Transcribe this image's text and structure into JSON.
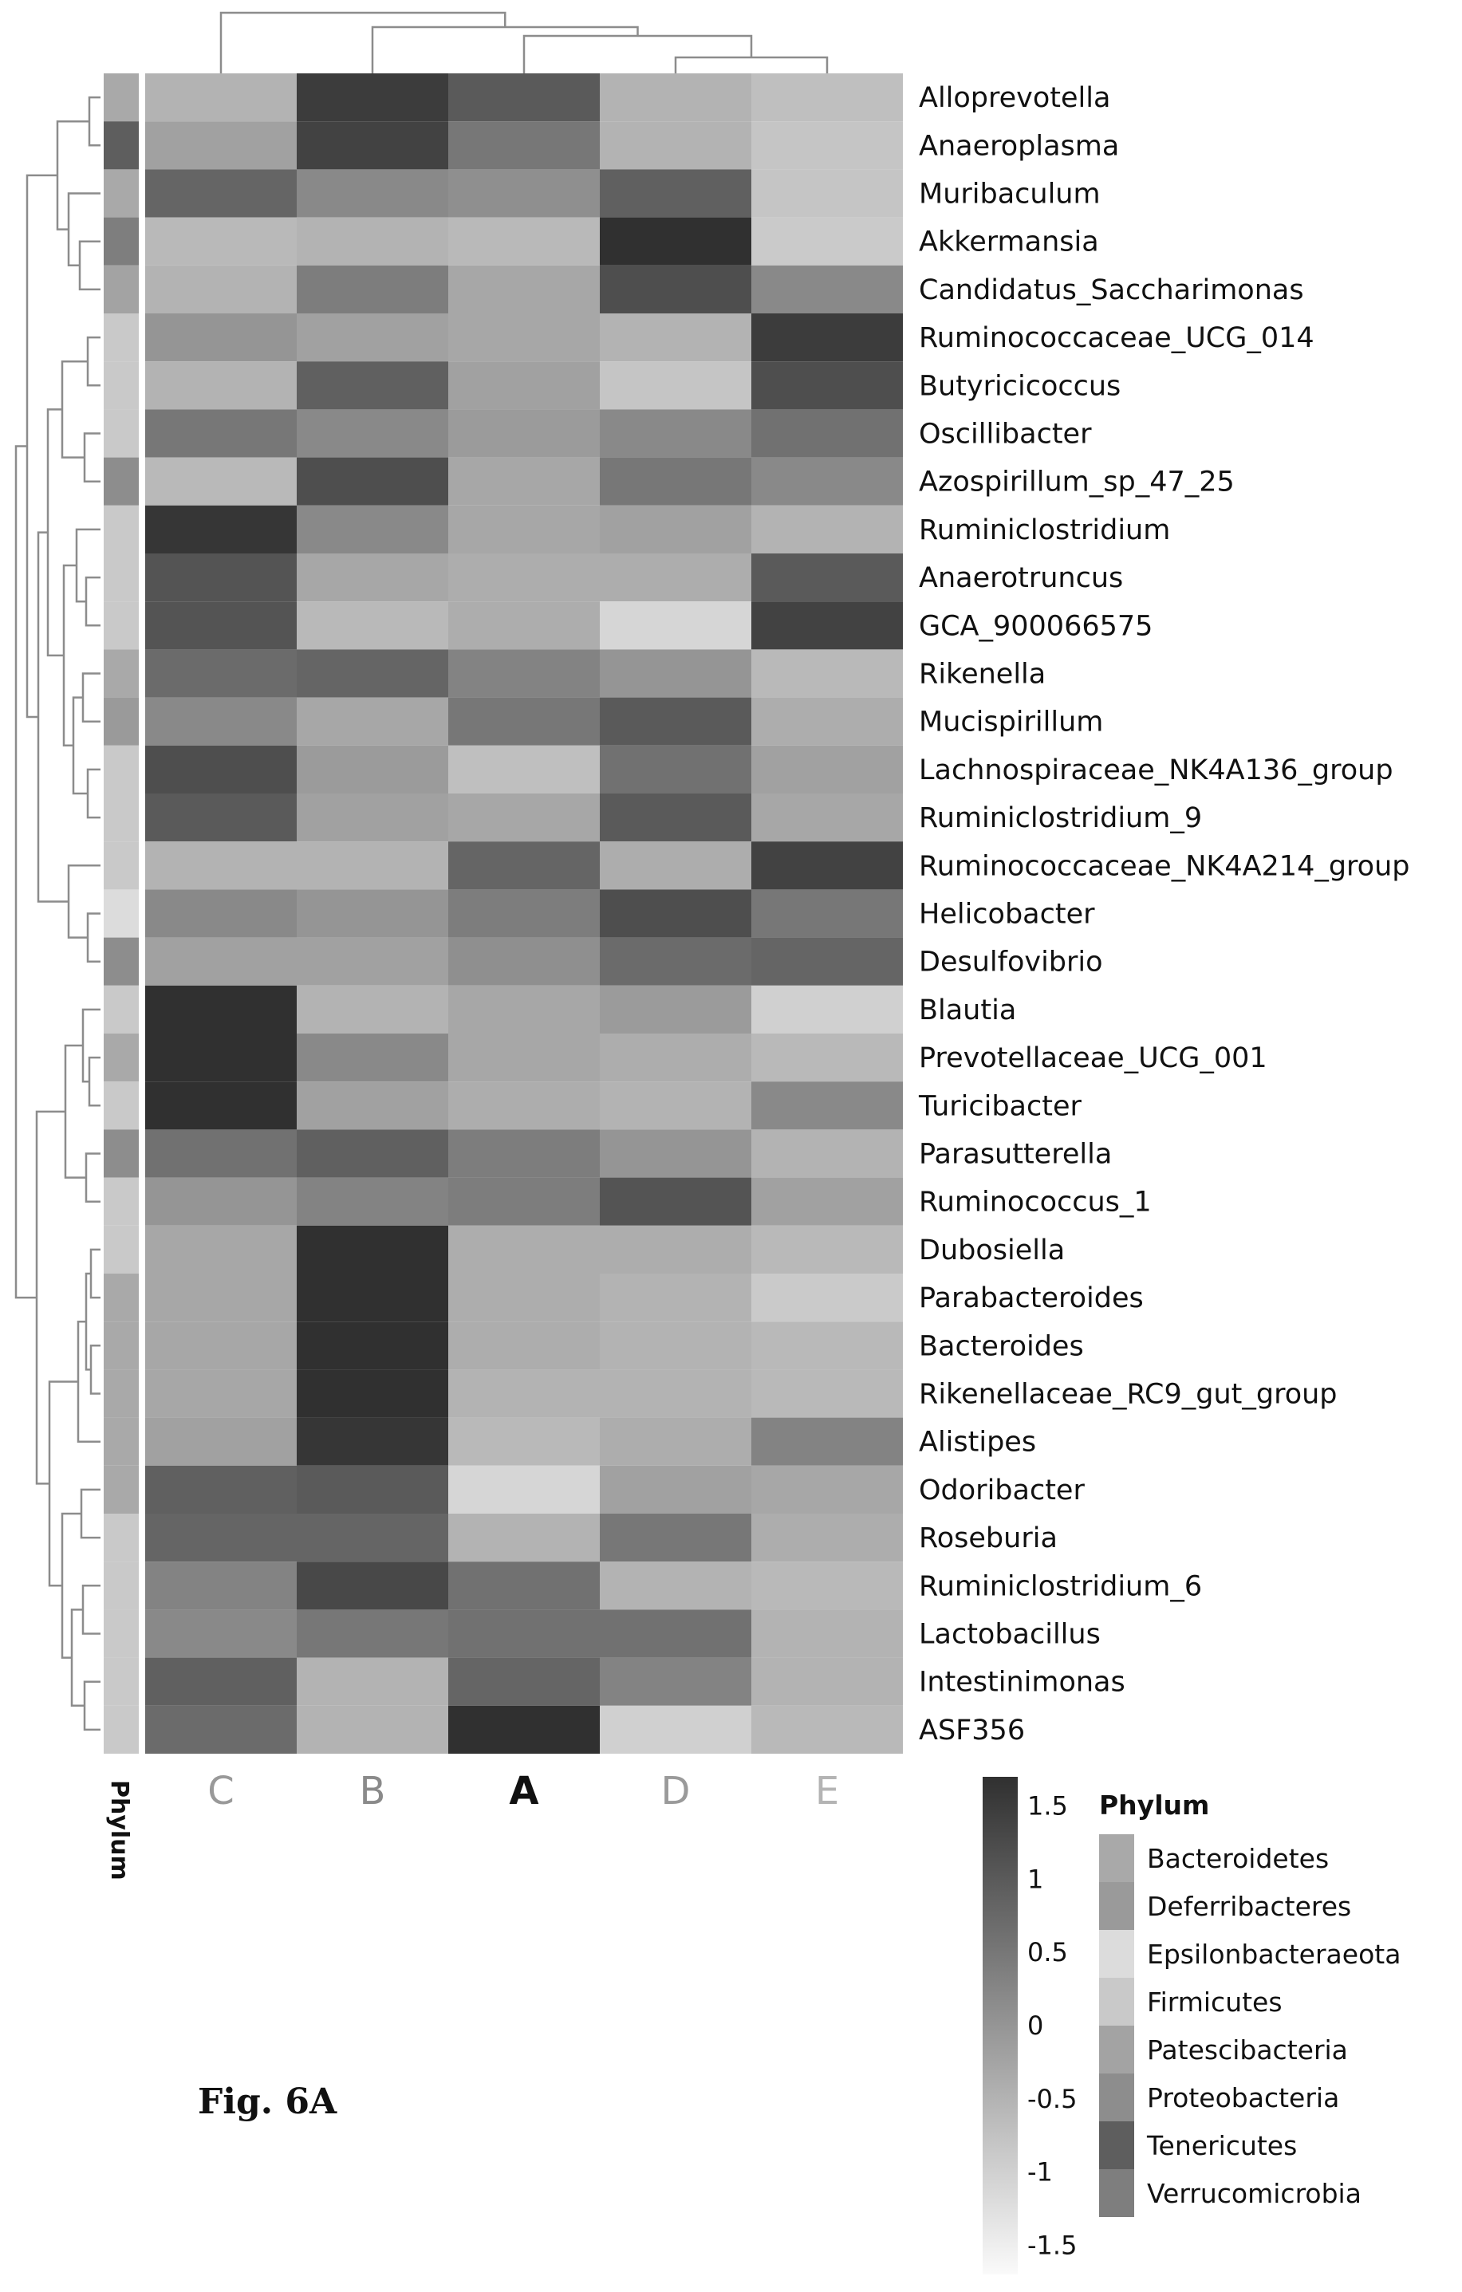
{
  "figure_label": "Fig. 6A",
  "chart_data": {
    "type": "heatmap",
    "columns": [
      "C",
      "B",
      "A",
      "D",
      "E"
    ],
    "rows": [
      "Alloprevotella",
      "Anaeroplasma",
      "Muribaculum",
      "Akkermansia",
      "Candidatus_Saccharimonas",
      "Ruminococcaceae_UCG_014",
      "Butyricicoccus",
      "Oscillibacter",
      "Azospirillum_sp_47_25",
      "Ruminiclostridium",
      "Anaerotruncus",
      "GCA_900066575",
      "Rikenella",
      "Mucispirillum",
      "Lachnospiraceae_NK4A136_group",
      "Ruminiclostridium_9",
      "Ruminococcaceae_NK4A214_group",
      "Helicobacter",
      "Desulfovibrio",
      "Blautia",
      "Prevotellaceae_UCG_001",
      "Turicibacter",
      "Parasutterella",
      "Ruminococcus_1",
      "Dubosiella",
      "Parabacteroides",
      "Bacteroides",
      "Rikenellaceae_RC9_gut_group",
      "Alistipes",
      "Odoribacter",
      "Roseburia",
      "Ruminiclostridium_6",
      "Lactobacillus",
      "Intestinimonas",
      "ASF356"
    ],
    "values": [
      [
        -0.5,
        1.5,
        1.0,
        -0.5,
        -0.7
      ],
      [
        -0.2,
        1.4,
        0.5,
        -0.5,
        -0.8
      ],
      [
        0.8,
        0.2,
        0.1,
        0.9,
        -0.8
      ],
      [
        -0.6,
        -0.5,
        -0.6,
        1.8,
        -0.9
      ],
      [
        -0.5,
        0.4,
        -0.3,
        1.2,
        0.2
      ],
      [
        0.0,
        -0.2,
        -0.3,
        -0.5,
        1.5
      ],
      [
        -0.5,
        0.9,
        -0.2,
        -0.8,
        1.2
      ],
      [
        0.5,
        0.2,
        -0.1,
        0.2,
        0.6
      ],
      [
        -0.6,
        1.2,
        -0.3,
        0.5,
        0.2
      ],
      [
        1.6,
        0.2,
        -0.3,
        -0.2,
        -0.5
      ],
      [
        1.1,
        -0.3,
        -0.4,
        -0.4,
        1.0
      ],
      [
        1.1,
        -0.6,
        -0.4,
        -1.1,
        1.4
      ],
      [
        0.7,
        0.8,
        0.3,
        0.0,
        -0.6
      ],
      [
        0.2,
        -0.3,
        0.5,
        1.0,
        -0.4
      ],
      [
        1.2,
        -0.1,
        -0.7,
        0.6,
        -0.2
      ],
      [
        1.0,
        -0.2,
        -0.3,
        1.0,
        -0.3
      ],
      [
        -0.5,
        -0.5,
        0.8,
        -0.4,
        1.4
      ],
      [
        0.2,
        0.0,
        0.4,
        1.2,
        0.5
      ],
      [
        -0.2,
        -0.2,
        0.1,
        0.7,
        0.8
      ],
      [
        1.7,
        -0.5,
        -0.3,
        -0.1,
        -1.0
      ],
      [
        1.7,
        0.2,
        -0.3,
        -0.4,
        -0.6
      ],
      [
        1.7,
        -0.2,
        -0.4,
        -0.5,
        0.2
      ],
      [
        0.6,
        0.9,
        0.4,
        0.0,
        -0.5
      ],
      [
        0.0,
        0.3,
        0.4,
        1.1,
        -0.2
      ],
      [
        -0.3,
        1.8,
        -0.4,
        -0.4,
        -0.6
      ],
      [
        -0.3,
        1.8,
        -0.4,
        -0.5,
        -0.9
      ],
      [
        -0.3,
        1.8,
        -0.4,
        -0.5,
        -0.6
      ],
      [
        -0.3,
        1.8,
        -0.5,
        -0.5,
        -0.6
      ],
      [
        -0.2,
        1.6,
        -0.6,
        -0.4,
        0.3
      ],
      [
        0.9,
        1.0,
        -1.1,
        -0.2,
        -0.3
      ],
      [
        0.8,
        0.8,
        -0.5,
        0.5,
        -0.4
      ],
      [
        0.3,
        1.3,
        0.6,
        -0.5,
        -0.6
      ],
      [
        0.2,
        0.5,
        0.6,
        0.6,
        -0.5
      ],
      [
        0.9,
        -0.5,
        0.8,
        0.3,
        -0.5
      ],
      [
        0.7,
        -0.5,
        1.7,
        -1.0,
        -0.6
      ]
    ],
    "row_phylum": [
      "Bacteroidetes",
      "Tenericutes",
      "Bacteroidetes",
      "Verrucomicrobia",
      "Patescibacteria",
      "Firmicutes",
      "Firmicutes",
      "Firmicutes",
      "Proteobacteria",
      "Firmicutes",
      "Firmicutes",
      "Firmicutes",
      "Bacteroidetes",
      "Deferribacteres",
      "Firmicutes",
      "Firmicutes",
      "Firmicutes",
      "Epsilonbacteraeota",
      "Proteobacteria",
      "Firmicutes",
      "Bacteroidetes",
      "Firmicutes",
      "Proteobacteria",
      "Firmicutes",
      "Firmicutes",
      "Bacteroidetes",
      "Bacteroidetes",
      "Bacteroidetes",
      "Bacteroidetes",
      "Bacteroidetes",
      "Firmicutes",
      "Firmicutes",
      "Firmicutes",
      "Firmicutes",
      "Firmicutes"
    ],
    "annotation_label": "Phylum",
    "color_scale": {
      "range": [
        -1.7,
        1.7
      ],
      "ticks": [
        "1.5",
        "1",
        "0.5",
        "0",
        "-0.5",
        "-1",
        "-1.5"
      ],
      "tick_values": [
        1.5,
        1,
        0.5,
        0,
        -0.5,
        -1,
        -1.5
      ],
      "low_color": "#fafafa",
      "high_color": "#303030"
    },
    "legend": {
      "title": "Phylum",
      "entries": [
        {
          "name": "Bacteroidetes",
          "color": "#a9a9a9"
        },
        {
          "name": "Deferribacteres",
          "color": "#9a9a9a"
        },
        {
          "name": "Epsilonbacteraeota",
          "color": "#dcdcdc"
        },
        {
          "name": "Firmicutes",
          "color": "#c9c9c9"
        },
        {
          "name": "Patescibacteria",
          "color": "#a3a3a3"
        },
        {
          "name": "Proteobacteria",
          "color": "#8d8d8d"
        },
        {
          "name": "Tenericutes",
          "color": "#5e5e5e"
        },
        {
          "name": "Verrucomicrobia",
          "color": "#7e7e7e"
        }
      ],
      "placement": "bottom-right"
    },
    "column_label_colors": [
      "#999999",
      "#8a8a8a",
      "#111111",
      "#9a9a9a",
      "#b4b4b4"
    ],
    "column_dendrogram": true,
    "row_dendrogram": true,
    "grid": false
  }
}
